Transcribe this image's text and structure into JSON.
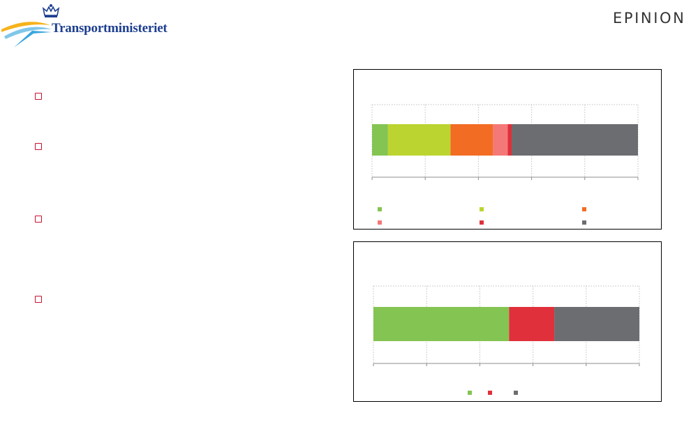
{
  "header": {
    "logo_left_text": "Transportministeriet",
    "logo_right_text": "EPINION"
  },
  "bullets": [
    {
      "text": ""
    },
    {
      "text": ""
    },
    {
      "text": ""
    },
    {
      "text": ""
    }
  ],
  "chart_data": [
    {
      "type": "bar",
      "orientation": "horizontal",
      "stacked": true,
      "categories": [
        ""
      ],
      "series": [
        {
          "color": "#84c452",
          "values": [
            6
          ]
        },
        {
          "color": "#bbd42f",
          "values": [
            23.5
          ]
        },
        {
          "color": "#f26c23",
          "values": [
            16
          ]
        },
        {
          "color": "#f47878",
          "values": [
            5.5
          ]
        },
        {
          "color": "#e0303b",
          "values": [
            1.5
          ]
        },
        {
          "color": "#6c6d70",
          "values": [
            47.5
          ]
        }
      ],
      "xlim": [
        0,
        100
      ],
      "grid": true,
      "legend_position": "bottom"
    },
    {
      "type": "bar",
      "orientation": "horizontal",
      "stacked": true,
      "categories": [
        ""
      ],
      "series": [
        {
          "color": "#84c452",
          "values": [
            51
          ]
        },
        {
          "color": "#e0303b",
          "values": [
            17
          ]
        },
        {
          "color": "#6c6d70",
          "values": [
            32
          ]
        }
      ],
      "xlim": [
        0,
        100
      ],
      "grid": true,
      "legend_position": "bottom"
    }
  ]
}
